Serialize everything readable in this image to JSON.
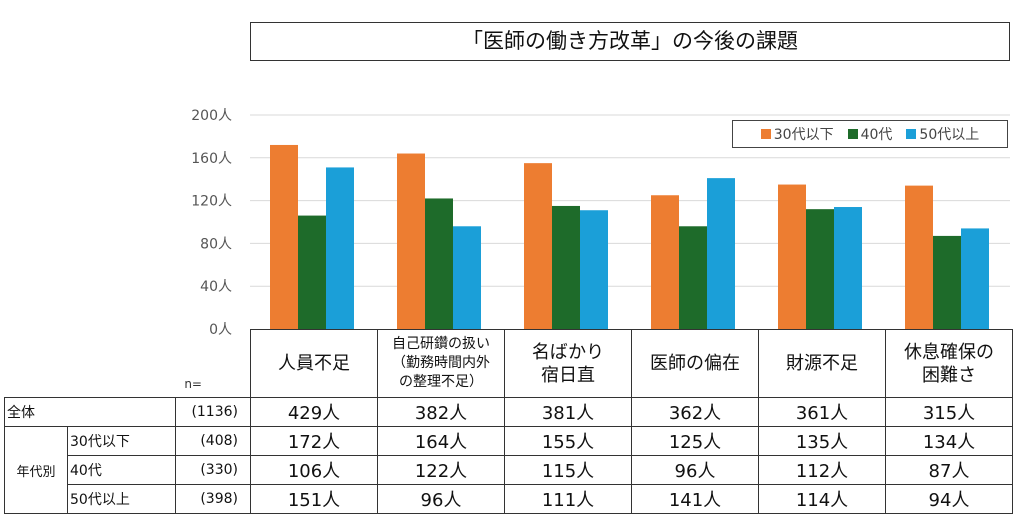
{
  "title": "「医師の働き方改革」の今後の課題",
  "chart_data": {
    "type": "bar",
    "title": "「医師の働き方改革」の今後の課題",
    "categories": [
      "人員不足",
      "自己研鑽の扱い（勤務時間内外の整理不足）",
      "名ばかり宿日直",
      "医師の偏在",
      "財源不足",
      "休息確保の困難さ"
    ],
    "category_lines": [
      [
        "人員不足"
      ],
      [
        "自己研鑽の扱い",
        "（勤務時間内外",
        "の整理不足）"
      ],
      [
        "名ばかり",
        "宿日直"
      ],
      [
        "医師の偏在"
      ],
      [
        "財源不足"
      ],
      [
        "休息確保の",
        "困難さ"
      ]
    ],
    "series": [
      {
        "name": "30代以下",
        "color": "#ED7D31",
        "values": [
          172,
          164,
          155,
          125,
          135,
          134
        ]
      },
      {
        "name": "40代",
        "color": "#1E6B2A",
        "values": [
          106,
          122,
          115,
          96,
          112,
          87
        ]
      },
      {
        "name": "50代以上",
        "color": "#1B9FD8",
        "values": [
          151,
          96,
          111,
          141,
          114,
          94
        ]
      }
    ],
    "ylim": [
      0,
      200
    ],
    "yticks": [
      "0人",
      "40人",
      "80人",
      "120人",
      "160人",
      "200人"
    ],
    "ytick_values": [
      0,
      40,
      80,
      120,
      160,
      200
    ],
    "grid": true,
    "legend": "top-right"
  },
  "table": {
    "n_label": "n=",
    "group_label": "年代別",
    "rows": [
      {
        "label": "全体",
        "n": "(1136)",
        "values": [
          "429人",
          "382人",
          "381人",
          "362人",
          "361人",
          "315人"
        ]
      },
      {
        "label": "30代以下",
        "n": "(408)",
        "values": [
          "172人",
          "164人",
          "155人",
          "125人",
          "135人",
          "134人"
        ]
      },
      {
        "label": "40代",
        "n": "(330)",
        "values": [
          "106人",
          "122人",
          "115人",
          "96人",
          "112人",
          "87人"
        ]
      },
      {
        "label": "50代以上",
        "n": "(398)",
        "values": [
          "151人",
          "96人",
          "111人",
          "141人",
          "114人",
          "94人"
        ]
      }
    ]
  }
}
